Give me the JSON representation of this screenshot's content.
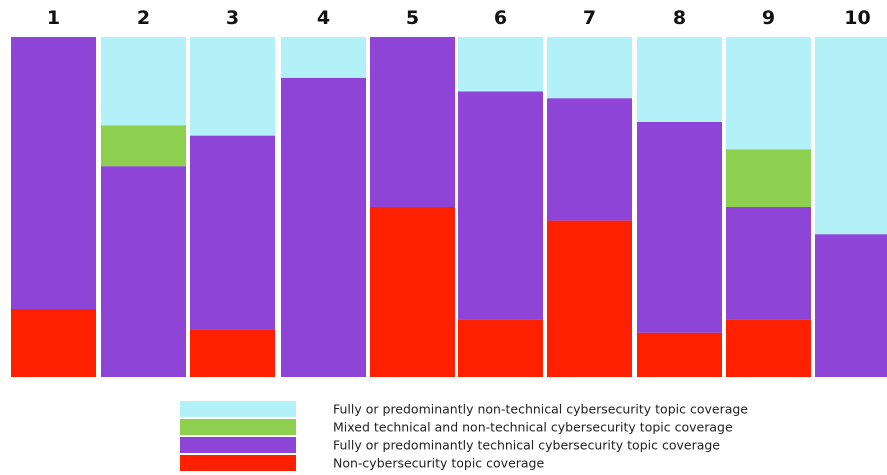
{
  "chart_data": {
    "type": "bar",
    "stacked": true,
    "normalized": true,
    "categories": [
      "1",
      "2",
      "3",
      "4",
      "5",
      "6",
      "7",
      "8",
      "9",
      "10"
    ],
    "series": [
      {
        "name": "Non-cybersecurity topic coverage",
        "color": "#ff2000",
        "values": [
          20,
          0,
          14,
          0,
          50,
          17,
          46,
          13,
          17,
          0
        ]
      },
      {
        "name": "Fully or predominantly technical cybersecurity topic coverage",
        "color": "#8e44d6",
        "values": [
          80,
          62,
          57,
          88,
          50,
          67,
          36,
          62,
          33,
          42
        ]
      },
      {
        "name": "Mixed technical and non-technical cybersecurity topic coverage",
        "color": "#8fcf50",
        "values": [
          0,
          12,
          0,
          0,
          0,
          0,
          0,
          0,
          17,
          0
        ]
      },
      {
        "name": "Fully or predominantly non-technical cybersecurity topic coverage",
        "color": "#b2f1f7",
        "values": [
          0,
          26,
          29,
          12,
          0,
          16,
          18,
          25,
          33,
          58
        ]
      }
    ],
    "legend_order": [
      3,
      2,
      1,
      0
    ],
    "legend_position": "bottom",
    "ylim": [
      0,
      100
    ],
    "grid": false,
    "title": "",
    "xlabel": "",
    "ylabel": ""
  }
}
